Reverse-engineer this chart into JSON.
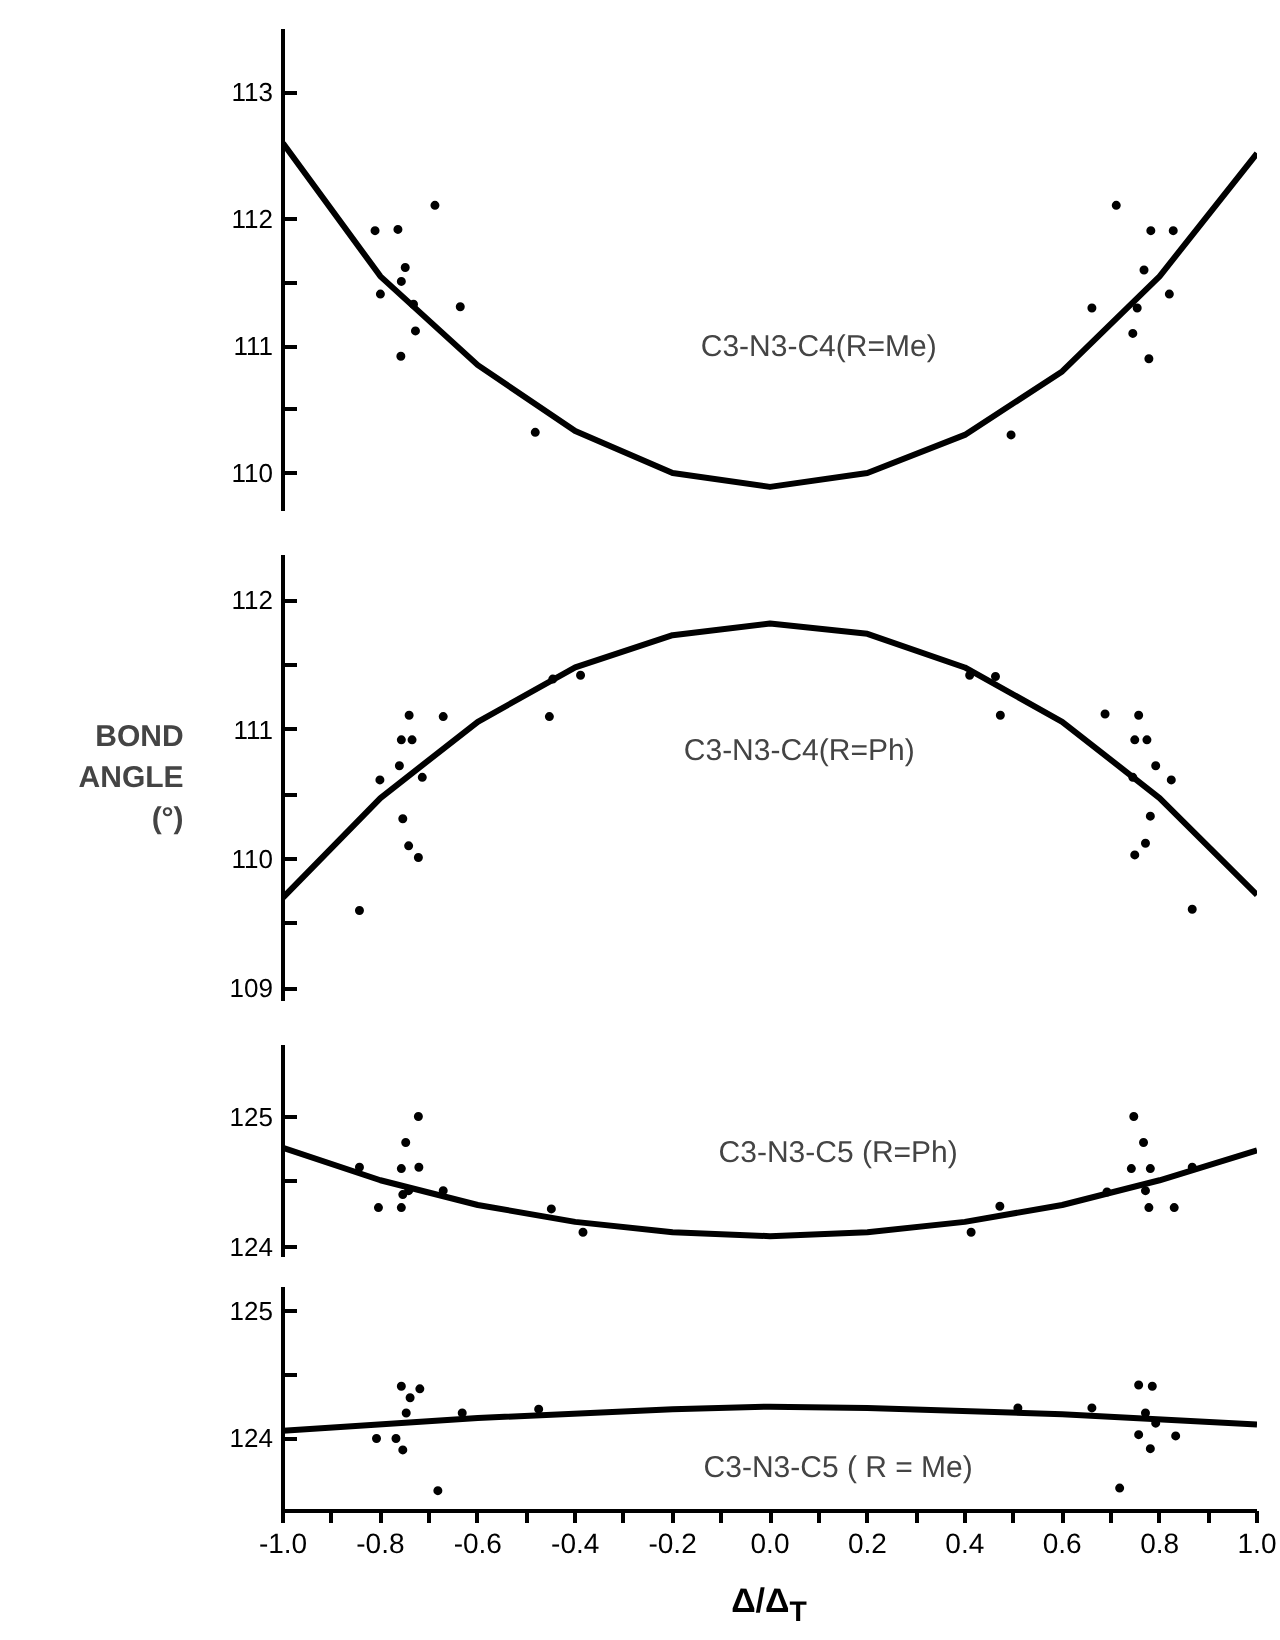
{
  "chart_data": [
    {
      "type": "scatter",
      "xlim": [
        -1.0,
        1.0
      ],
      "tick_labels": "y",
      "grid": false,
      "ylim": [
        109.7,
        113.5
      ],
      "yticks": [
        110,
        {
          "value": 110.5,
          "label": null
        },
        111,
        {
          "value": 111.5,
          "label": null
        },
        112,
        113
      ],
      "series": [
        {
          "type": "line",
          "color": "#000000",
          "line_style": "solid",
          "x": [
            -1.0,
            -0.8,
            -0.6,
            -0.4,
            -0.2,
            0.0,
            0.2,
            0.4,
            0.6,
            0.8,
            1.0
          ],
          "values": [
            112.6,
            111.55,
            110.85,
            110.33,
            110.0,
            109.89,
            110.0,
            110.3,
            110.8,
            111.55,
            112.52
          ]
        },
        {
          "type": "scatter",
          "color": "#000000",
          "marker": "circle",
          "x": [
            -0.811,
            -0.764,
            -0.688,
            -0.749,
            -0.8,
            -0.757,
            -0.732,
            -0.636,
            -0.728,
            -0.758,
            -0.482,
            0.711,
            0.782,
            0.828,
            0.768,
            0.82,
            0.661,
            0.754,
            0.745,
            0.778,
            0.495
          ],
          "values": [
            111.91,
            111.92,
            112.11,
            111.62,
            111.41,
            111.51,
            111.33,
            111.31,
            111.12,
            110.92,
            110.32,
            112.11,
            111.91,
            111.91,
            111.6,
            111.41,
            111.3,
            111.3,
            111.1,
            110.9,
            110.3
          ]
        }
      ],
      "annotations": [
        "C3-N3-C4(R=Me)"
      ]
    },
    {
      "type": "scatter",
      "xlim": [
        -1.0,
        1.0
      ],
      "tick_labels": "y",
      "grid": false,
      "ylabel": "BOND ANGLE (°)",
      "ylim": [
        108.9,
        112.35
      ],
      "yticks": [
        109,
        {
          "value": 109.5,
          "label": null
        },
        110,
        {
          "value": 110.5,
          "label": null
        },
        111,
        {
          "value": 111.5,
          "label": null
        },
        112
      ],
      "series": [
        {
          "type": "line",
          "color": "#000000",
          "line_style": "solid",
          "x": [
            -1.0,
            -0.8,
            -0.6,
            -0.4,
            -0.2,
            0.0,
            0.2,
            0.4,
            0.6,
            0.8,
            1.0
          ],
          "values": [
            109.7,
            110.47,
            111.06,
            111.48,
            111.73,
            111.82,
            111.74,
            111.48,
            111.06,
            110.47,
            109.72
          ]
        },
        {
          "type": "scatter",
          "color": "#000000",
          "marker": "circle",
          "x": [
            -0.843,
            -0.801,
            -0.761,
            -0.741,
            -0.757,
            -0.735,
            -0.714,
            -0.754,
            -0.742,
            -0.722,
            -0.671,
            -0.453,
            -0.446,
            -0.389,
            0.41,
            0.463,
            0.473,
            0.688,
            0.757,
            0.749,
            0.774,
            0.792,
            0.824,
            0.745,
            0.781,
            0.771,
            0.749,
            0.867
          ],
          "values": [
            109.6,
            110.61,
            110.72,
            111.11,
            110.92,
            110.92,
            110.63,
            110.31,
            110.1,
            110.01,
            111.1,
            111.1,
            111.39,
            111.42,
            111.42,
            111.41,
            111.11,
            111.12,
            111.11,
            110.92,
            110.92,
            110.72,
            110.61,
            110.63,
            110.33,
            110.12,
            110.03,
            109.61
          ]
        }
      ],
      "annotations": [
        "C3-N3-C4(R=Ph)"
      ]
    },
    {
      "type": "scatter",
      "xlim": [
        -1.0,
        1.0
      ],
      "tick_labels": "y",
      "grid": false,
      "ylim": [
        123.92,
        125.55
      ],
      "yticks": [
        124,
        {
          "value": 124.5,
          "label": null
        },
        125
      ],
      "series": [
        {
          "type": "line",
          "color": "#000000",
          "line_style": "solid",
          "x": [
            -1.0,
            -0.8,
            -0.6,
            -0.4,
            -0.2,
            0.0,
            0.2,
            0.4,
            0.6,
            0.8,
            1.0
          ],
          "values": [
            124.76,
            124.51,
            124.32,
            124.19,
            124.11,
            124.08,
            124.11,
            124.19,
            124.32,
            124.51,
            124.74
          ]
        },
        {
          "type": "scatter",
          "color": "#000000",
          "marker": "circle",
          "x": [
            -0.843,
            -0.804,
            -0.757,
            -0.757,
            -0.722,
            -0.748,
            -0.721,
            -0.742,
            -0.754,
            -0.671,
            -0.449,
            -0.384,
            0.413,
            0.472,
            0.692,
            0.747,
            0.767,
            0.742,
            0.781,
            0.771,
            0.778,
            0.83,
            0.867
          ],
          "values": [
            124.61,
            124.3,
            124.3,
            124.6,
            125.0,
            124.8,
            124.61,
            124.43,
            124.4,
            124.43,
            124.29,
            124.11,
            124.11,
            124.31,
            124.42,
            125.0,
            124.8,
            124.6,
            124.6,
            124.43,
            124.3,
            124.3,
            124.61
          ]
        }
      ],
      "annotations": [
        "C3-N3-C5 (R=Ph)"
      ]
    },
    {
      "type": "scatter",
      "xlim": [
        -1.0,
        1.0
      ],
      "xticks": [
        {
          "value": -1.0,
          "label": "-1.0"
        },
        {
          "value": -0.9,
          "label": null
        },
        {
          "value": -0.8,
          "label": "-0.8"
        },
        {
          "value": -0.7,
          "label": null
        },
        {
          "value": -0.6,
          "label": "-0.6"
        },
        {
          "value": -0.5,
          "label": null
        },
        {
          "value": -0.4,
          "label": "-0.4"
        },
        {
          "value": -0.3,
          "label": null
        },
        {
          "value": -0.2,
          "label": "-0.2"
        },
        {
          "value": -0.1,
          "label": null
        },
        {
          "value": 0.0,
          "label": "0.0"
        },
        {
          "value": 0.1,
          "label": null
        },
        {
          "value": 0.2,
          "label": "0.2"
        },
        {
          "value": 0.3,
          "label": null
        },
        {
          "value": 0.4,
          "label": "0.4"
        },
        {
          "value": 0.5,
          "label": null
        },
        {
          "value": 0.6,
          "label": "0.6"
        },
        {
          "value": 0.7,
          "label": null
        },
        {
          "value": 0.8,
          "label": "0.8"
        },
        {
          "value": 0.9,
          "label": null
        },
        {
          "value": 1.0,
          "label": "1.0"
        }
      ],
      "grid": false,
      "xlabel": "Δ/Δ$_{T}$",
      "ylim": [
        123.43,
        125.19
      ],
      "yticks": [
        124,
        {
          "value": 124.5,
          "label": null
        },
        125
      ],
      "series": [
        {
          "type": "line",
          "color": "#000000",
          "line_style": "solid",
          "x": [
            -1.0,
            -0.6,
            -0.2,
            0.0,
            0.2,
            0.6,
            1.0
          ],
          "values": [
            124.06,
            124.16,
            124.23,
            124.25,
            124.24,
            124.19,
            124.11
          ]
        },
        {
          "type": "scatter",
          "color": "#000000",
          "marker": "circle",
          "x": [
            -0.808,
            -0.768,
            -0.757,
            -0.719,
            -0.739,
            -0.747,
            -0.754,
            -0.682,
            -0.632,
            -0.475,
            0.509,
            0.661,
            0.757,
            0.785,
            0.771,
            0.792,
            0.757,
            0.833,
            0.781,
            0.718
          ],
          "values": [
            124.0,
            124.0,
            124.41,
            124.39,
            124.32,
            124.2,
            123.91,
            123.59,
            124.2,
            124.23,
            124.24,
            124.24,
            124.42,
            124.41,
            124.2,
            124.12,
            124.03,
            124.02,
            123.92,
            123.61
          ]
        }
      ],
      "annotations": [
        "C3-N3-C5 ( R = Me)"
      ]
    }
  ]
}
